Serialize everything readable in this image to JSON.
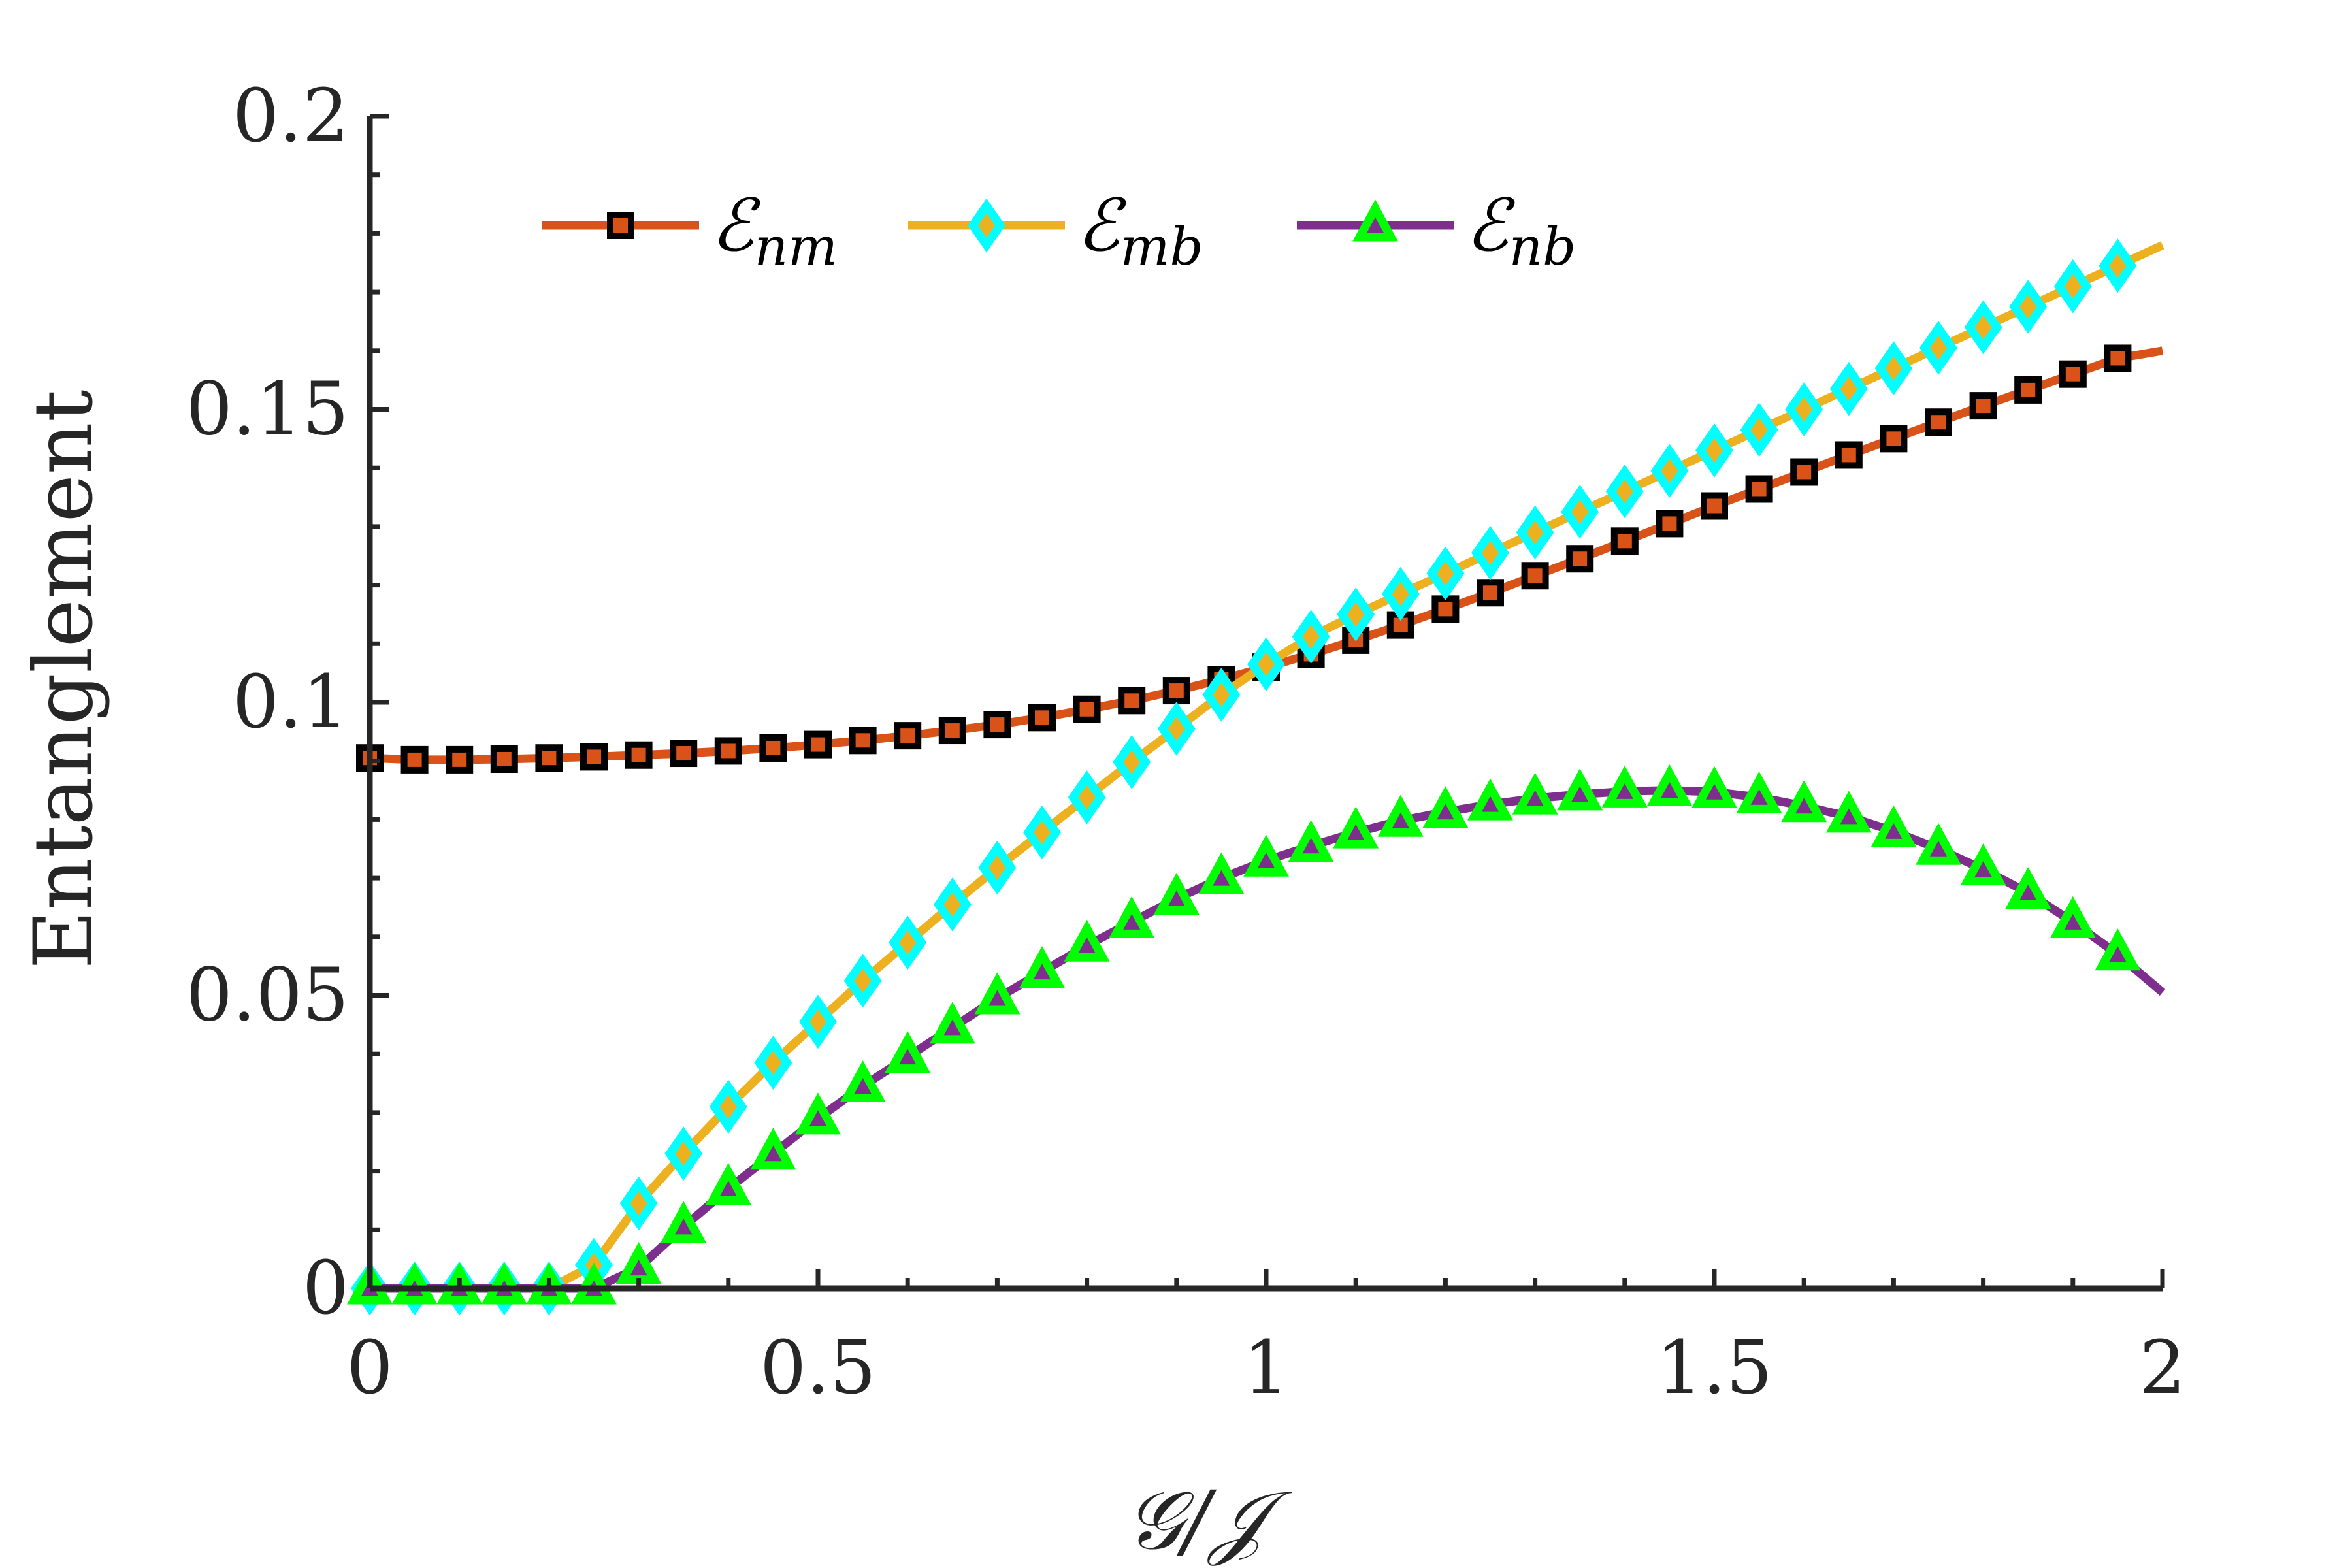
{
  "chart_data": {
    "type": "line",
    "title": "",
    "xlabel": "𝒢/𝒥",
    "ylabel": "Entanglement",
    "xlim": [
      0,
      2
    ],
    "ylim": [
      0,
      0.2
    ],
    "xticks": [
      0,
      0.5,
      1,
      1.5,
      2
    ],
    "xtick_labels": [
      "0",
      "0.5",
      "1",
      "1.5",
      "2"
    ],
    "yticks": [
      0,
      0.05,
      0.1,
      0.15,
      0.2
    ],
    "ytick_labels": [
      "0",
      "0.05",
      "0.1",
      "0.15",
      "0.2"
    ],
    "grid": false,
    "legend": {
      "position": "top",
      "orientation": "horizontal",
      "entries": [
        {
          "main": "ℰ",
          "sub": "nm"
        },
        {
          "main": "ℰ",
          "sub": "mb"
        },
        {
          "main": "ℰ",
          "sub": "nb"
        }
      ]
    },
    "x": [
      0,
      0.05,
      0.1,
      0.15,
      0.2,
      0.25,
      0.3,
      0.35,
      0.4,
      0.45,
      0.5,
      0.55,
      0.6,
      0.65,
      0.7,
      0.75,
      0.8,
      0.85,
      0.9,
      0.95,
      1.0,
      1.05,
      1.1,
      1.15,
      1.2,
      1.25,
      1.3,
      1.35,
      1.4,
      1.45,
      1.5,
      1.55,
      1.6,
      1.65,
      1.7,
      1.75,
      1.8,
      1.85,
      1.9,
      1.95,
      2.0
    ],
    "series": [
      {
        "name": "E_nm",
        "color": "#D95319",
        "marker": "square",
        "marker_edge": "#000000",
        "values": [
          0.0905,
          0.0902,
          0.0902,
          0.0903,
          0.0905,
          0.0907,
          0.091,
          0.0913,
          0.0917,
          0.0922,
          0.0928,
          0.0935,
          0.0943,
          0.0952,
          0.0962,
          0.0974,
          0.0988,
          0.1003,
          0.102,
          0.1039,
          0.106,
          0.1082,
          0.1106,
          0.1132,
          0.1159,
          0.1187,
          0.1216,
          0.1245,
          0.1275,
          0.1305,
          0.1335,
          0.1364,
          0.1393,
          0.1422,
          0.145,
          0.1478,
          0.1506,
          0.1533,
          0.156,
          0.1587,
          0.16
        ]
      },
      {
        "name": "E_mb",
        "color": "#EDB120",
        "marker": "diamond",
        "marker_edge": "#00FFFF",
        "values": [
          0,
          0,
          0,
          0,
          0,
          0.004,
          0.0145,
          0.023,
          0.031,
          0.0385,
          0.0455,
          0.0525,
          0.059,
          0.0655,
          0.0718,
          0.0778,
          0.0838,
          0.0898,
          0.0955,
          0.1013,
          0.1065,
          0.1112,
          0.115,
          0.1185,
          0.122,
          0.1255,
          0.129,
          0.1325,
          0.136,
          0.1395,
          0.143,
          0.1465,
          0.15,
          0.1535,
          0.157,
          0.1605,
          0.164,
          0.1675,
          0.171,
          0.1745,
          0.178
        ]
      },
      {
        "name": "E_nb",
        "color": "#7E2F8E",
        "marker": "triangle",
        "marker_edge": "#00FF00",
        "values": [
          0,
          0,
          0,
          0,
          0,
          0,
          0.0035,
          0.0105,
          0.017,
          0.023,
          0.029,
          0.0345,
          0.0395,
          0.0445,
          0.0495,
          0.054,
          0.0585,
          0.0625,
          0.0665,
          0.07,
          0.073,
          0.0755,
          0.0778,
          0.0798,
          0.0813,
          0.0826,
          0.0836,
          0.0843,
          0.0848,
          0.085,
          0.0847,
          0.0838,
          0.0823,
          0.0805,
          0.078,
          0.075,
          0.0715,
          0.0675,
          0.0625,
          0.057,
          0.0505
        ]
      }
    ]
  }
}
